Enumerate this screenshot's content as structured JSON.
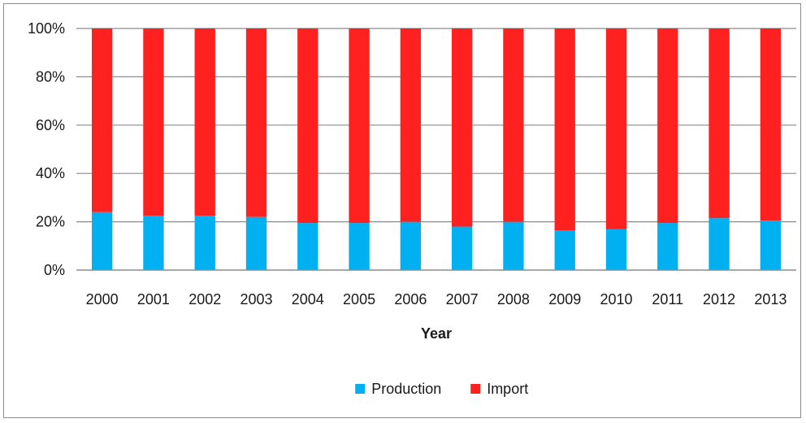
{
  "chart_data": {
    "type": "bar",
    "stacked": true,
    "percent_stacked": true,
    "categories": [
      "2000",
      "2001",
      "2002",
      "2003",
      "2004",
      "2005",
      "2006",
      "2007",
      "2008",
      "2009",
      "2010",
      "2011",
      "2012",
      "2013"
    ],
    "series": [
      {
        "name": "Production",
        "color": "#00B0F0",
        "values": [
          24,
          22.5,
          22.5,
          22,
          19.5,
          19.5,
          20,
          18,
          20,
          16.5,
          17,
          19.5,
          21.5,
          20.5
        ]
      },
      {
        "name": "Import",
        "color": "#FF2020",
        "values": [
          76,
          77.5,
          77.5,
          78,
          80.5,
          80.5,
          80,
          82,
          80,
          83.5,
          83,
          80.5,
          78.5,
          79.5
        ]
      }
    ],
    "xlabel": "Year",
    "ylabel": "",
    "ylim": [
      0,
      100
    ],
    "yticks": [
      0,
      20,
      40,
      60,
      80,
      100
    ],
    "ytick_labels": [
      "0%",
      "20%",
      "40%",
      "60%",
      "80%",
      "100%"
    ],
    "grid": true,
    "legend_position": "bottom"
  }
}
